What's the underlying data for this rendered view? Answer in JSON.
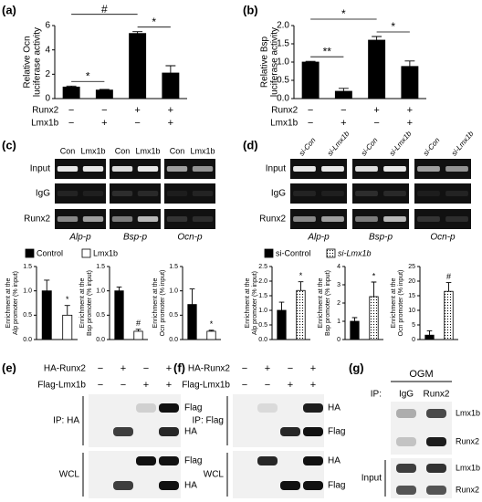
{
  "panel_labels": [
    "(a)",
    "(b)",
    "(c)",
    "(d)",
    "(e)",
    "(f)",
    "(g)"
  ],
  "chart_data": [
    {
      "type": "bar",
      "ylabel": [
        "Relative Ocn",
        "luciferase activity"
      ],
      "values": [
        0.95,
        0.7,
        5.35,
        2.1
      ],
      "errors": [
        0.08,
        0.05,
        0.15,
        0.6
      ],
      "color": "#000000",
      "ylim": [
        0,
        6
      ],
      "yticks": [
        0,
        2,
        4,
        6
      ],
      "annotations": [
        "*",
        "#",
        "*"
      ],
      "conditions": [
        {
          "name": "Runx2",
          "values": [
            "−",
            "−",
            "+",
            "+"
          ]
        },
        {
          "name": "Lmx1b",
          "values": [
            "−",
            "+",
            "−",
            "+"
          ]
        }
      ]
    },
    {
      "type": "bar",
      "ylabel": [
        "Relative Bsp",
        "luciferase activity"
      ],
      "values": [
        1.0,
        0.2,
        1.6,
        0.88
      ],
      "errors": [
        0.02,
        0.08,
        0.1,
        0.15
      ],
      "color": "#000000",
      "ylim": [
        0,
        2
      ],
      "yticks": [
        {
          "value": 0,
          "label": "0.0"
        },
        0.5,
        {
          "value": 1,
          "label": "1.0"
        },
        1.5,
        {
          "value": 2,
          "label": "2.0"
        }
      ],
      "annotations": [
        "**",
        "*",
        "*"
      ],
      "conditions": [
        {
          "name": "Runx2",
          "values": [
            "−",
            "−",
            "+",
            "+"
          ]
        },
        {
          "name": "Lmx1b",
          "values": [
            "−",
            "+",
            "−",
            "+"
          ]
        }
      ]
    },
    {
      "type": "bar",
      "ylabel": [
        "Enrichment at the",
        "Alp promoter (% input)"
      ],
      "values": [
        1.0,
        0.5
      ],
      "errors": [
        0.22,
        0.2
      ],
      "colors": [
        "#000000",
        "#ffffff"
      ],
      "ylim": [
        0,
        1.5
      ],
      "yticks": [
        {
          "value": 0,
          "label": "0.0"
        },
        0.5,
        {
          "value": 1,
          "label": "1.0"
        },
        1.5
      ],
      "annotations": [
        "*"
      ]
    },
    {
      "type": "bar",
      "ylabel": [
        "Enrichment at the",
        "Bsp promoter (% input)"
      ],
      "values": [
        1.0,
        0.17
      ],
      "errors": [
        0.08,
        0.04
      ],
      "colors": [
        "#000000",
        "#ffffff"
      ],
      "ylim": [
        0,
        1.5
      ],
      "yticks": [
        {
          "value": 0,
          "label": "0.0"
        },
        0.5,
        {
          "value": 1,
          "label": "1.0"
        },
        1.5
      ],
      "annotations": [
        "#"
      ]
    },
    {
      "type": "bar",
      "ylabel": [
        "Enrichment at the",
        "Ocn promoter (% input)"
      ],
      "values": [
        0.72,
        0.17
      ],
      "errors": [
        0.32,
        0.02
      ],
      "colors": [
        "#000000",
        "#ffffff"
      ],
      "ylim": [
        0,
        1.5
      ],
      "yticks": [
        {
          "value": 0,
          "label": "0.0"
        },
        0.5,
        {
          "value": 1,
          "label": "1.0"
        },
        1.5
      ],
      "annotations": [
        "*"
      ]
    },
    {
      "type": "bar",
      "ylabel": [
        "Enrichment at the",
        "Alp promoter (% input)"
      ],
      "values": [
        1.0,
        1.68
      ],
      "errors": [
        0.28,
        0.3
      ],
      "colors": [
        "#000000",
        "#ffffff"
      ],
      "dotted": [
        false,
        true
      ],
      "ylim": [
        0,
        2.5
      ],
      "yticks": [
        {
          "value": 0,
          "label": "0.0"
        },
        0.5,
        {
          "value": 1,
          "label": "1.0"
        },
        1.5,
        {
          "value": 2,
          "label": "2.0"
        },
        2.5
      ],
      "annotations": [
        "*"
      ]
    },
    {
      "type": "bar",
      "ylabel": [
        "Enrichment at the",
        "Bsp promoter (% input)"
      ],
      "values": [
        1.0,
        2.35
      ],
      "errors": [
        0.2,
        0.8
      ],
      "colors": [
        "#000000",
        "#ffffff"
      ],
      "dotted": [
        false,
        true
      ],
      "ylim": [
        0,
        4
      ],
      "yticks": [
        0,
        1,
        2,
        3,
        4
      ],
      "annotations": [
        "*"
      ]
    },
    {
      "type": "bar",
      "ylabel": [
        "Enrichment at the",
        "Ocn promoter (% input)"
      ],
      "values": [
        1.5,
        16.5
      ],
      "errors": [
        1.5,
        3
      ],
      "colors": [
        "#000000",
        "#ffffff"
      ],
      "dotted": [
        false,
        true
      ],
      "ylim": [
        0,
        25
      ],
      "yticks": [
        0,
        5,
        10,
        15,
        20,
        25
      ],
      "annotations": [
        "#"
      ]
    }
  ],
  "legends": {
    "c": [
      {
        "name": "Control",
        "color": "#000000"
      },
      {
        "name": "Lmx1b",
        "color": "#ffffff"
      }
    ],
    "d": [
      {
        "name": "si-Control",
        "color": "#000000"
      },
      {
        "name": "si-Lmx1b",
        "color": "#ffffff",
        "dotted": true
      }
    ]
  },
  "gels": {
    "c": {
      "lanes": [
        "Con",
        "Lmx1b",
        "Con",
        "Lmx1b",
        "Con",
        "Lmx1b"
      ],
      "rows": [
        "Input",
        "IgG",
        "Runx2"
      ],
      "promoters": [
        "Alp-p",
        "Bsp-p",
        "Ocn-p"
      ]
    },
    "d": {
      "lanes": [
        "si-Con",
        "si-Lmx1b",
        "si-Con",
        "si-Lmx1b",
        "si-Con",
        "si-Lmx1b"
      ],
      "rows": [
        "Input",
        "IgG",
        "Runx2"
      ],
      "promoters": [
        "Alp-p",
        "Bsp-p",
        "Ocn-p"
      ]
    }
  },
  "blots": {
    "e": {
      "conditions": [
        {
          "name": "HA-Runx2",
          "values": [
            "−",
            "+",
            "−",
            "+"
          ]
        },
        {
          "name": "Flag-Lmx1b",
          "values": [
            "−",
            "−",
            "+",
            "+"
          ]
        }
      ],
      "groups": [
        {
          "name": "IP: HA",
          "bands": [
            "Flag",
            "HA"
          ]
        },
        {
          "name": "WCL",
          "bands": [
            "Flag",
            "HA"
          ]
        }
      ]
    },
    "f": {
      "conditions": [
        {
          "name": "HA-Runx2",
          "values": [
            "−",
            "+",
            "−",
            "+"
          ]
        },
        {
          "name": "Flag-Lmx1b",
          "values": [
            "−",
            "−",
            "+",
            "+"
          ]
        }
      ],
      "groups": [
        {
          "name": "IP: Flag",
          "bands": [
            "HA",
            "Flag"
          ]
        },
        {
          "name": "WCL",
          "bands": [
            "HA",
            "Flag"
          ]
        }
      ]
    },
    "g": {
      "header": "OGM",
      "ip_label": "IP:",
      "lanes": [
        "IgG",
        "Runx2"
      ],
      "groups": [
        {
          "bands": [
            "Lmx1b",
            "Runx2"
          ]
        },
        {
          "name": "Input",
          "bands": [
            "Lmx1b",
            "Runx2"
          ]
        }
      ]
    }
  }
}
